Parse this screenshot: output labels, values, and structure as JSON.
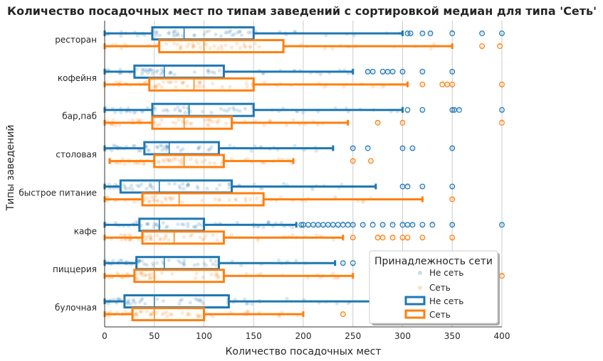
{
  "chart_data": {
    "type": "box",
    "title": "Количество посадочных мест по типам заведений с сортировкой медиан для типа 'Сеть'",
    "xlabel": "Количество посадочных мест",
    "ylabel": "Типы заведений",
    "xlim": [
      0,
      400
    ],
    "xticks": [
      "0",
      "50",
      "100",
      "150",
      "200",
      "250",
      "300",
      "350",
      "400"
    ],
    "grid": "vertical",
    "legend_position": "lower-right",
    "legend": {
      "title": "Принадлежность сети",
      "entries": [
        {
          "label": "Не сеть",
          "kind": "points",
          "color": "#1f77b4"
        },
        {
          "label": "Сеть",
          "kind": "points",
          "color": "#ff7f0e"
        },
        {
          "label": "Не сеть",
          "kind": "box",
          "color": "#1f77b4"
        },
        {
          "label": "Сеть",
          "kind": "box",
          "color": "#ff7f0e"
        }
      ]
    },
    "colors": {
      "not_chain": "#1f77b4",
      "chain": "#ff7f0e"
    },
    "categories": [
      "ресторан",
      "кофейня",
      "бар,паб",
      "столовая",
      "быстрое питание",
      "кафе",
      "пиццерия",
      "булочная"
    ],
    "series": [
      {
        "name": "Не сеть",
        "boxes": [
          {
            "whislo": 0,
            "q1": 48,
            "med": 80,
            "q3": 150,
            "whishi": 300,
            "fliers": [
              305,
              308,
              320,
              328,
              350,
              380,
              400
            ]
          },
          {
            "whislo": 0,
            "q1": 30,
            "med": 60,
            "q3": 120,
            "whishi": 250,
            "fliers": [
              265,
              270,
              280,
              285,
              290,
              300,
              320,
              350
            ]
          },
          {
            "whislo": 0,
            "q1": 48,
            "med": 85,
            "q3": 150,
            "whishi": 300,
            "fliers": [
              305,
              320,
              350,
              352,
              357,
              400
            ]
          },
          {
            "whislo": 0,
            "q1": 40,
            "med": 65,
            "q3": 115,
            "whishi": 230,
            "fliers": [
              250,
              265,
              300,
              310,
              350
            ]
          },
          {
            "whislo": 0,
            "q1": 16,
            "med": 55,
            "q3": 128,
            "whishi": 273,
            "fliers": [
              300,
              305,
              320,
              350
            ]
          },
          {
            "whislo": 0,
            "q1": 35,
            "med": 55,
            "q3": 100,
            "whishi": 193,
            "fliers": [
              198,
              200,
              205,
              210,
              215,
              220,
              225,
              230,
              235,
              240,
              245,
              250,
              260,
              270,
              280,
              290,
              300,
              305,
              310,
              320,
              330,
              350,
              400
            ]
          },
          {
            "whislo": 0,
            "q1": 32,
            "med": 60,
            "q3": 115,
            "whishi": 232,
            "fliers": [
              240,
              250
            ]
          },
          {
            "whislo": 0,
            "q1": 20,
            "med": 50,
            "q3": 125,
            "whishi": 270,
            "fliers": []
          }
        ]
      },
      {
        "name": "Сеть",
        "boxes": [
          {
            "whislo": 0,
            "q1": 55,
            "med": 100,
            "q3": 180,
            "whishi": 350,
            "fliers": [
              380,
              398
            ]
          },
          {
            "whislo": 0,
            "q1": 45,
            "med": 90,
            "q3": 150,
            "whishi": 305,
            "fliers": [
              320,
              340,
              345,
              350,
              400
            ]
          },
          {
            "whislo": 0,
            "q1": 48,
            "med": 80,
            "q3": 128,
            "whishi": 245,
            "fliers": [
              275,
              300,
              400
            ]
          },
          {
            "whislo": 5,
            "q1": 50,
            "med": 80,
            "q3": 120,
            "whishi": 190,
            "fliers": [
              250,
              268
            ]
          },
          {
            "whislo": 0,
            "q1": 38,
            "med": 75,
            "q3": 160,
            "whishi": 320,
            "fliers": [
              350
            ]
          },
          {
            "whislo": 0,
            "q1": 38,
            "med": 70,
            "q3": 120,
            "whishi": 240,
            "fliers": [
              250,
              275,
              280,
              290,
              300,
              305,
              320,
              350
            ]
          },
          {
            "whislo": 0,
            "q1": 30,
            "med": 50,
            "q3": 120,
            "whishi": 250,
            "fliers": [
              400
            ]
          },
          {
            "whislo": 0,
            "q1": 28,
            "med": 50,
            "q3": 100,
            "whishi": 200,
            "fliers": [
              240
            ]
          }
        ]
      }
    ]
  }
}
